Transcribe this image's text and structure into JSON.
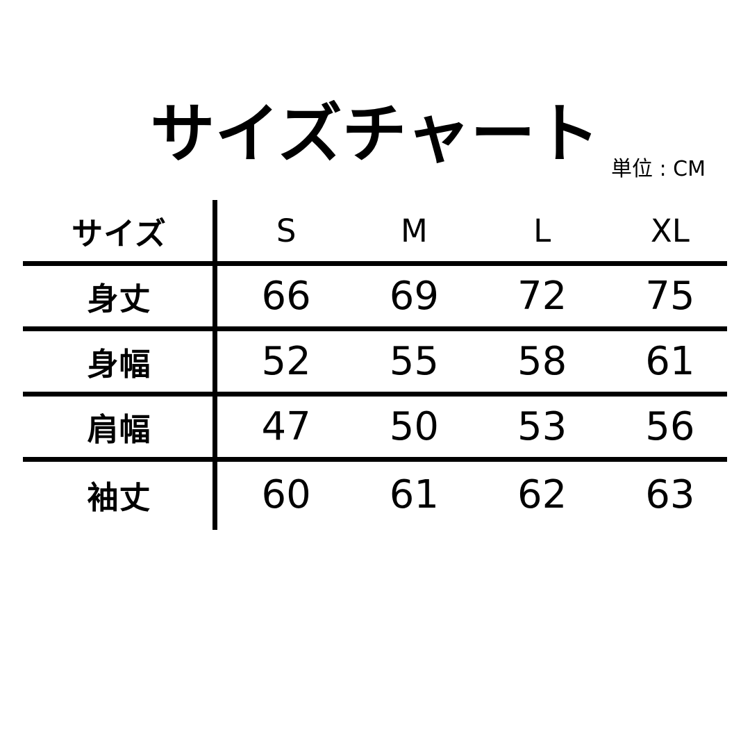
{
  "title": "サイズチャート",
  "unit_label": "単位 : CM",
  "colors": {
    "text": "#000000",
    "background": "#ffffff",
    "rule_lines": "#000000"
  },
  "chart_data": {
    "type": "table",
    "title": "サイズチャート",
    "unit": "CM",
    "header": {
      "row_label": "サイズ",
      "columns": [
        "S",
        "M",
        "L",
        "XL"
      ]
    },
    "rows": [
      {
        "label": "身丈",
        "values": [
          "66",
          "69",
          "72",
          "75"
        ]
      },
      {
        "label": "身幅",
        "values": [
          "52",
          "55",
          "58",
          "61"
        ]
      },
      {
        "label": "肩幅",
        "values": [
          "47",
          "50",
          "53",
          "56"
        ]
      },
      {
        "label": "袖丈",
        "values": [
          "60",
          "61",
          "62",
          "63"
        ]
      }
    ]
  }
}
